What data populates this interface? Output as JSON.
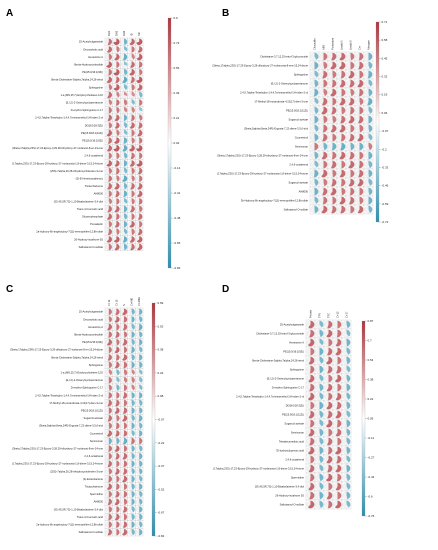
{
  "colors": {
    "positive": "#b0343b",
    "neutral": "#ffffff",
    "negative": "#2a8fb0",
    "grid": "#bcbcbc",
    "text": "#222222"
  },
  "chart_data": [
    {
      "panel": "A",
      "type": "heatmap",
      "columns": [
        "DH1",
        "DH2",
        "DH3",
        "ID",
        "SR"
      ],
      "colorbar_ticks": [
        "0.9",
        "0.73",
        "0.56",
        "0.39",
        "0.21",
        "0.04",
        "-0.14",
        "-0.31",
        "-0.48",
        "-0.65",
        "-0.83"
      ],
      "rows": [
        "25-Acetylvulgaroside",
        "Decosyhotic acid",
        "Hexestrine A",
        "Bexta-Hydroxycortisolide",
        "PE(15:0/16:1(9Z))",
        "Bexta-Cholestane-3alpha,7alpha,24,26-tetrol",
        "Sphingosine",
        "1-a,(MN,25,7)-Ertyloxycholeeen-12O",
        "(E,I,2)-2-Ostenylcyclopentanone",
        "D-erythro-Sphingosine C-17",
        "2,4,5,7alpha-Tetrahydro-1,4,4,7a-tetramethyl-1H-inden-2-ol",
        "DG(8:0/18:3(Z))",
        "PE(15:0/18:1(11Z))",
        "PE(15:0/16:1(9Z))",
        "(3beta,17alpha,23S)-17,23-Epoxy-3,29,28-trihydroxy-27-norlanost-8-en-24-one",
        "2,4,6-octatrienal",
        "(17alpha,23S)-17,23-Epoxy-29-hydroxy-27-norlanosta-1,8-diene-3,15,24-trione",
        "(25S)-7alpha,26,28-trihydroxycholesten-3-one",
        "(S)-E-Heneicosadienoic",
        "Tricaccharinone",
        "AH8000",
        "(3S,4S,5R,7S)-1,10-Bisabolatriene-3,4-diol",
        "Trans-4-Coumaric acid",
        "Glycerophosphate",
        "Pomalactin",
        "2a-hydroxy-6b-angeloyloxy-7(11)-eremophilen-12,8b-olide",
        "26-Hydroxy-isoafrone-5S",
        "Salbutamol-O-sulfate"
      ],
      "values": [
        [
          0.55,
          0.72,
          -0.48,
          0.62,
          0.7
        ],
        [
          0.6,
          0.45,
          -0.35,
          0.5,
          0.58
        ],
        [
          0.48,
          0.62,
          -0.55,
          0.4,
          0.66
        ],
        [
          0.66,
          0.5,
          -0.3,
          0.58,
          0.52
        ],
        [
          0.52,
          0.7,
          -0.45,
          0.64,
          0.48
        ],
        [
          0.62,
          0.55,
          -0.6,
          0.55,
          0.7
        ],
        [
          0.45,
          0.68,
          -0.4,
          0.48,
          0.62
        ],
        [
          0.58,
          0.4,
          0.3,
          0.35,
          -0.42
        ],
        [
          0.42,
          0.52,
          0.45,
          -0.38,
          0.5
        ],
        [
          0.5,
          0.46,
          0.38,
          0.42,
          -0.3
        ],
        [
          0.56,
          0.6,
          -0.5,
          0.52,
          0.44
        ],
        [
          0.48,
          0.58,
          -0.42,
          0.6,
          0.55
        ],
        [
          0.62,
          0.44,
          -0.36,
          0.5,
          0.6
        ],
        [
          0.54,
          0.64,
          -0.52,
          0.46,
          0.5
        ],
        [
          0.6,
          0.7,
          -0.58,
          0.66,
          0.72
        ],
        [
          0.5,
          0.48,
          -0.44,
          0.54,
          0.5
        ],
        [
          0.64,
          0.6,
          -0.5,
          0.6,
          0.68
        ],
        [
          0.46,
          0.52,
          -0.4,
          0.48,
          0.56
        ],
        [
          0.52,
          0.44,
          -0.6,
          0.44,
          0.5
        ],
        [
          0.58,
          0.62,
          -0.46,
          0.56,
          0.6
        ],
        [
          0.5,
          0.56,
          -0.52,
          0.5,
          0.62
        ],
        [
          0.44,
          0.5,
          -0.38,
          0.46,
          0.52
        ],
        [
          0.56,
          0.6,
          -0.5,
          0.58,
          0.48
        ],
        [
          0.6,
          0.52,
          -0.44,
          0.5,
          0.56
        ],
        [
          0.48,
          0.58,
          -0.5,
          0.62,
          0.5
        ],
        [
          0.54,
          0.46,
          -0.4,
          0.48,
          0.58
        ],
        [
          0.62,
          0.66,
          -0.56,
          0.6,
          0.64
        ],
        [
          0.5,
          0.6,
          -0.48,
          0.56,
          0.62
        ]
      ]
    },
    {
      "panel": "B",
      "type": "heatmap",
      "columns": [
        "Cloxacillin",
        "ABS",
        "Potassium",
        "Linalyl-1",
        "Linalyl-2",
        "Cr+",
        "Nitrogen"
      ],
      "colorbar_ticks": [
        "0.71",
        "0.58",
        "0.45",
        "0.32",
        "0.19",
        "0.06",
        "-0.07",
        "-0.2",
        "-0.33",
        "-0.46",
        "-0.59",
        "-0.72"
      ],
      "rows": [
        "Cholestane-3,7,12,25-tetrol-3-glucuronide",
        "(3beta,17alpha,23S)-17,23-Epoxy-3,29-dihydroxy-27-norlanosta-8-ene-15,24-dione",
        "Sphingosine",
        "(E,I,2)-2-Ostenylcyclopentanone",
        "2,4,5,7alpha-Tetrahydro-1,4,4,7a-tetramethyl-1H-inden-2-ol",
        "17-Methyl-18-norandrosta-4,13(17)-dien-3-one",
        "PE(15:0/18:1(11Z))",
        "Sugarcol acetate",
        "(3beta,5alpha,6beta,24R)-Ergosta-7,22-diene-3,5,6-triol",
        "Coumestrol",
        "Seminonan",
        "(3beta,17alpha,23S)-17,23-Epoxy-3,28,29-trihydroxy-27-norlanost-8-en-24-one",
        "2,4,6-octatrienal",
        "(17alpha,23S)-17,23-Epoxy-29-hydroxy-27-norlanosta-1,8-diene-3,15,24-trione",
        "Sugarcol acetate",
        "AH8000",
        "3b-Hydroxy-6b-angeloyloxy-7(11)-eremophilen-12,8b-olide",
        "Salbutamol-O-sulfate"
      ],
      "values": [
        [
          -0.42,
          0.5,
          0.55,
          0.6,
          0.48,
          0.52,
          -0.5
        ],
        [
          -0.5,
          0.46,
          0.6,
          0.62,
          0.5,
          0.55,
          -0.44
        ],
        [
          -0.4,
          0.55,
          0.48,
          0.52,
          0.6,
          0.5,
          -0.52
        ],
        [
          -0.46,
          0.5,
          0.52,
          0.58,
          0.55,
          0.6,
          -0.4
        ],
        [
          -0.52,
          0.44,
          0.6,
          0.5,
          0.46,
          0.52,
          -0.48
        ],
        [
          -0.38,
          0.56,
          0.5,
          0.6,
          0.58,
          0.46,
          -0.55
        ],
        [
          -0.44,
          0.6,
          0.55,
          0.48,
          0.52,
          0.5,
          -0.42
        ],
        [
          -0.5,
          0.48,
          0.46,
          0.55,
          0.6,
          0.56,
          -0.5
        ],
        [
          -0.42,
          0.52,
          0.58,
          0.6,
          0.5,
          0.48,
          -0.46
        ],
        [
          -0.48,
          0.55,
          0.5,
          0.52,
          0.56,
          0.6,
          -0.4
        ],
        [
          0.5,
          -0.46,
          -0.52,
          -0.55,
          -0.48,
          -0.5,
          0.45
        ],
        [
          -0.46,
          0.58,
          0.52,
          0.6,
          0.55,
          0.5,
          -0.5
        ],
        [
          -0.4,
          0.5,
          0.56,
          0.5,
          0.6,
          0.52,
          -0.44
        ],
        [
          -0.52,
          0.6,
          0.48,
          0.58,
          0.5,
          0.55,
          -0.48
        ],
        [
          -0.44,
          0.46,
          0.55,
          0.52,
          0.58,
          0.6,
          -0.42
        ],
        [
          -0.5,
          0.55,
          0.6,
          0.48,
          0.52,
          0.5,
          -0.46
        ],
        [
          -0.42,
          0.52,
          0.5,
          0.6,
          0.56,
          0.48,
          -0.5
        ],
        [
          -0.48,
          0.6,
          0.55,
          0.55,
          0.5,
          0.58,
          -0.44
        ]
      ]
    },
    {
      "panel": "C",
      "type": "heatmap",
      "columns": [
        "Cr 12",
        "Cr 13",
        "N",
        "Cr+ME",
        "Cr-4ME"
      ],
      "colorbar_ticks": [
        "0.69",
        "0.53",
        "0.38",
        "0.23",
        "0.08",
        "-0.07",
        "-0.22",
        "-0.37",
        "-0.52",
        "-0.67",
        "-0.82"
      ],
      "rows": [
        "25-Acetylvulgaroside",
        "Decosyhotic acid",
        "Hexestrine A",
        "Bexta-Hydroxycortisolide",
        "PE(15:0/16:1(9Z))",
        "(3beta,17alpha,23R)-17,23-Epoxy-3,29-dihydroxy-27-norlanost-8-en-15,24-dione",
        "Bexta-Cholestane-3alpha,7alpha,24,26-tetrol",
        "Sphingosine",
        "1-a,(MN,25,7)-Ertyloxycholeeen-12O",
        "(E,I,2)-2-Ostenylcyclopentanone",
        "D-erythro-Sphingosine C-17",
        "2,4,5,7alpha-Tetrahydro-1,4,4,7a-tetramethyl-1H-inden-2-ol",
        "17-Methyl-18-norandrosta-4,13(17)-dien-3-one",
        "PE(15:0/18:1(11Z))",
        "Sugarcol acetate",
        "(3beta,5alpha,6beta,24R)-Ergosta-7,22-diene-3,5,6-triol",
        "Coumestrol",
        "Seminonan",
        "(3beta,17alpha,23S)-17,23-Epoxy-3,28,29-trihydroxy-27-norlanost-8-en-24-one",
        "2,4,6-octatrienal",
        "(17alpha,23S)-17,23-Epoxy-29-hydroxy-27-norlanosta-1,8-diene-3,15,24-trione",
        "(25S)-7alpha,26,28-trihydroxycholesten-3-one",
        "(4)-Enterolactone",
        "Tricaccharinone",
        "Spermidine",
        "AH8000",
        "(3S,4S,5R,7S)-1,10-Bisabolatriene-3,4-diol",
        "Trans-4-Coumaric acid",
        "2a-hydroxy-6b-angeloyloxy-7(11)-eremophilen-12,8b-olide",
        "Salbutamol-O-sulfate"
      ],
      "values": [
        [
          0.5,
          0.55,
          0.6,
          -0.45,
          -0.5
        ],
        [
          0.46,
          0.6,
          0.52,
          -0.5,
          -0.44
        ],
        [
          0.58,
          0.5,
          0.55,
          -0.42,
          -0.52
        ],
        [
          0.52,
          0.56,
          0.48,
          -0.5,
          -0.46
        ],
        [
          0.6,
          0.48,
          0.58,
          -0.44,
          -0.5
        ],
        [
          0.5,
          0.6,
          0.5,
          -0.52,
          -0.42
        ],
        [
          0.55,
          0.52,
          0.6,
          -0.46,
          -0.5
        ],
        [
          0.48,
          0.58,
          0.52,
          -0.5,
          -0.48
        ],
        [
          0.4,
          -0.42,
          0.45,
          0.38,
          -0.36
        ],
        [
          0.5,
          -0.38,
          0.42,
          0.44,
          -0.4
        ],
        [
          0.46,
          -0.44,
          0.5,
          0.4,
          -0.38
        ],
        [
          0.52,
          0.5,
          0.56,
          -0.48,
          -0.5
        ],
        [
          0.56,
          0.55,
          0.5,
          -0.46,
          -0.44
        ],
        [
          0.5,
          0.6,
          0.55,
          -0.5,
          -0.48
        ],
        [
          0.55,
          0.48,
          0.6,
          -0.44,
          -0.52
        ],
        [
          0.48,
          0.52,
          0.5,
          -0.5,
          -0.46
        ],
        [
          0.6,
          0.56,
          0.52,
          -0.42,
          -0.5
        ],
        [
          -0.5,
          -0.48,
          -0.55,
          0.52,
          0.5
        ],
        [
          0.52,
          0.6,
          0.5,
          -0.48,
          -0.44
        ],
        [
          0.5,
          0.55,
          0.58,
          -0.46,
          -0.5
        ],
        [
          0.56,
          0.5,
          0.52,
          -0.5,
          -0.48
        ],
        [
          0.48,
          0.58,
          0.55,
          -0.44,
          -0.46
        ],
        [
          0.52,
          0.5,
          0.6,
          -0.5,
          -0.42
        ],
        [
          0.6,
          0.52,
          0.5,
          -0.46,
          -0.5
        ],
        [
          0.5,
          0.56,
          0.52,
          -0.48,
          -0.44
        ],
        [
          0.55,
          0.6,
          0.48,
          -0.5,
          -0.46
        ],
        [
          0.48,
          0.5,
          0.56,
          -0.42,
          -0.5
        ],
        [
          0.52,
          0.58,
          0.5,
          -0.46,
          -0.48
        ],
        [
          0.5,
          0.52,
          0.55,
          -0.5,
          -0.44
        ],
        [
          0.56,
          0.5,
          0.6,
          -0.44,
          -0.5
        ]
      ]
    },
    {
      "panel": "D",
      "type": "heatmap",
      "columns": [
        "Protein",
        "TFN",
        "TFC",
        "Cr-12",
        "Cr-17"
      ],
      "colorbar_ticks": [
        "0.87",
        "0.7",
        "0.54",
        "0.38",
        "0.22",
        "0.05",
        "-0.11",
        "-0.27",
        "-0.44",
        "-0.6",
        "-0.76"
      ],
      "rows": [
        "25-Acetylvulgaroside",
        "Cholestane-3,7,12,25-tetrol-3-glucuronide",
        "Hexestrine A",
        "PE(15:0/16:1(9Z))",
        "Bexta-Cholestane-3alpha,7alpha,24,26-tetrol",
        "Sphingosine",
        "(E,I,2)-2-Ostenylcyclopentanone",
        "D-erythro-Sphingosine C-17",
        "2,4,5,7alpha-Tetrahydro-1,4,4,7a-tetramethyl-1H-inden-2-ol",
        "DG(8:0/18:3(Z))",
        "PE(15:0/18:1(11Z))",
        "Sugarcol acetate",
        "Seminonan",
        "Tetradecenedioic acid",
        "7β-hydroxylupenoic acid",
        "2,4,6-octatrienal",
        "(17alpha,23S)-17,23-Epoxy-29-hydroxy-27-norlanosta-1,8-diene-3,15,24-trione",
        "Spermidine",
        "(3S,4S,5R,7S)-1,10-Bisabolatriene-3,4-diol",
        "26-Hydroxy-isoafrone 5S",
        "Salbutamol-O-sulfate"
      ],
      "values": [
        [
          0.6,
          -0.4,
          0.55,
          0.5,
          -0.45
        ],
        [
          0.55,
          -0.45,
          0.6,
          0.52,
          -0.4
        ],
        [
          0.62,
          -0.38,
          0.5,
          0.58,
          -0.48
        ],
        [
          0.5,
          -0.5,
          0.56,
          0.6,
          -0.42
        ],
        [
          0.58,
          -0.42,
          0.62,
          0.5,
          -0.46
        ],
        [
          0.52,
          -0.48,
          0.55,
          0.56,
          -0.4
        ],
        [
          0.6,
          -0.4,
          0.5,
          0.62,
          -0.44
        ],
        [
          0.55,
          -0.46,
          0.58,
          0.5,
          -0.48
        ],
        [
          0.62,
          -0.42,
          0.52,
          0.58,
          -0.42
        ],
        [
          0.5,
          -0.5,
          0.6,
          0.55,
          -0.46
        ],
        [
          0.58,
          -0.44,
          0.55,
          0.6,
          -0.4
        ],
        [
          0.52,
          -0.4,
          0.62,
          0.52,
          -0.48
        ],
        [
          0.6,
          -0.46,
          0.5,
          0.58,
          -0.44
        ],
        [
          0.55,
          -0.42,
          0.56,
          0.5,
          -0.42
        ],
        [
          0.62,
          -0.48,
          0.52,
          0.62,
          -0.46
        ],
        [
          0.5,
          -0.44,
          0.6,
          0.55,
          -0.4
        ],
        [
          0.58,
          -0.4,
          0.55,
          0.6,
          -0.48
        ],
        [
          0.52,
          -0.46,
          0.62,
          0.52,
          -0.44
        ],
        [
          0.6,
          -0.42,
          0.5,
          0.58,
          -0.42
        ],
        [
          0.55,
          -0.48,
          0.58,
          0.5,
          -0.46
        ],
        [
          0.62,
          -0.44,
          0.52,
          0.62,
          -0.4
        ]
      ]
    }
  ]
}
